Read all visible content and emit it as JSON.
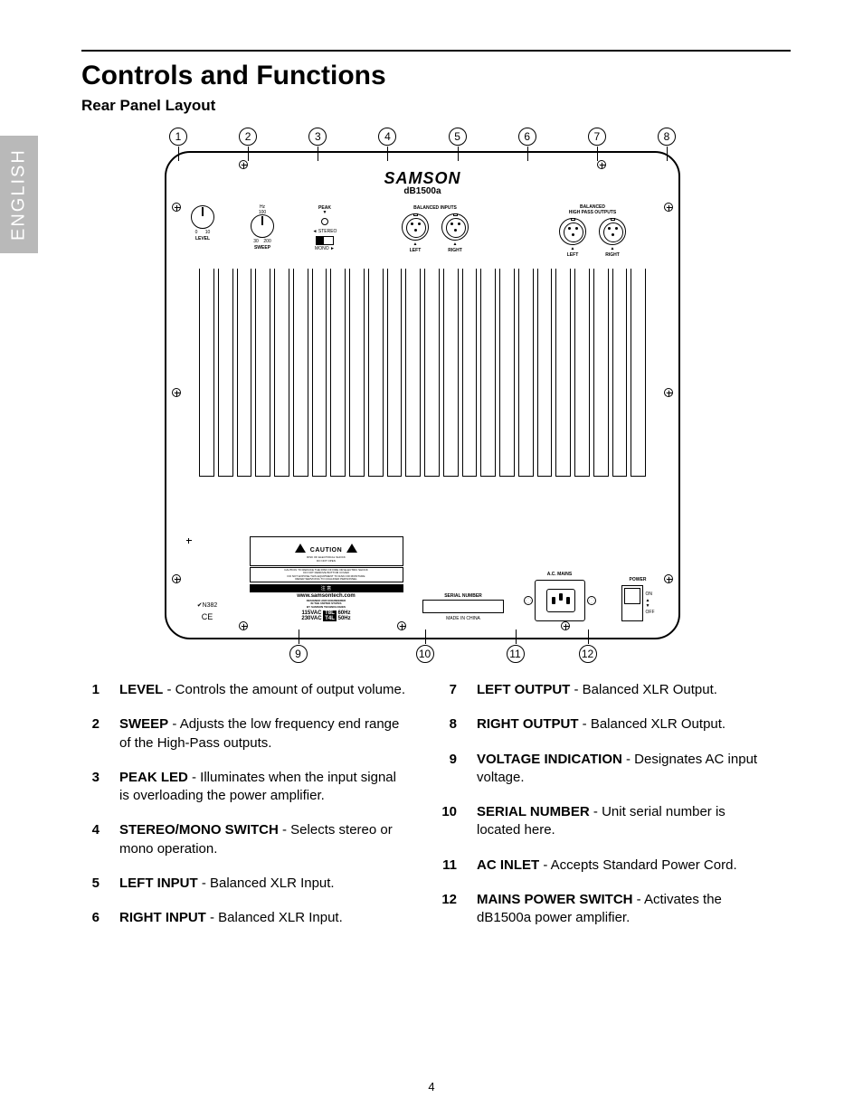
{
  "page": {
    "lang_tab": "ENGLISH",
    "title": "Controls and Functions",
    "subtitle": "Rear Panel Layout",
    "page_number": "4"
  },
  "diagram": {
    "brand": "SAMSON",
    "model": "dB1500a",
    "sections": {
      "balanced_inputs": "BALANCED INPUTS",
      "hp_outputs_l1": "BALANCED",
      "hp_outputs_l2": "HIGH PASS OUTPUTS",
      "left": "LEFT",
      "right": "RIGHT",
      "level_label": "LEVEL",
      "level_min": "0",
      "level_max": "10",
      "sweep_label": "SWEEP",
      "sweep_min": "30",
      "sweep_max": "200",
      "sweep_unit": "Hz",
      "sweep_mid": "100",
      "peak": "PEAK",
      "stereo": "◄ STEREO",
      "mono": "MONO ►",
      "cert": "N382",
      "ce": "CE",
      "caution": "CAUTION",
      "caution_sub": "RISK OF ELECTRICAL SHOCK\nDO NOT OPEN",
      "caution_body": "CAUTION: TO REDUCE THE RISK OF FIRE OR ELECTRIC SHOCK\nDO NOT REMOVE BOTTOM COVER\nDO NOT EXPOSE THIS EQUIPMENT TO RAIN OR MOISTURE\nREFER SERVICING TO QUALIFIED PERSONNEL",
      "attention": "注 意",
      "url": "www.samsontech.com",
      "designed": "DESIGNED AND ENGINEERED\nIN THE UNITED STATES\nBY SAMSON TECHNOLOGIES",
      "v115": "115VAC",
      "v230": "230VAC",
      "f60": "60Hz",
      "f50": "50Hz",
      "fuse1": "T8L",
      "fuse2": "T4L",
      "serial": "SERIAL NUMBER",
      "made": "MADE IN CHINA",
      "ac_mains": "A.C. MAINS",
      "power": "POWER",
      "on": "ON",
      "off": "OFF"
    },
    "callouts_top": [
      "1",
      "2",
      "3",
      "4",
      "5",
      "6",
      "7",
      "8"
    ],
    "callouts_bottom": [
      "9",
      "10",
      "11",
      "12"
    ],
    "fin_count": 24
  },
  "items_left": [
    {
      "n": "1",
      "term": "LEVEL",
      "desc": " - Controls the amount of output volume."
    },
    {
      "n": "2",
      "term": "SWEEP",
      "desc": " - Adjusts the low frequency end range of the High-Pass outputs."
    },
    {
      "n": "3",
      "term": "PEAK LED",
      "desc": " - Illuminates when the input signal is overloading the power amplifier."
    },
    {
      "n": "4",
      "term": "STEREO/MONO SWITCH",
      "desc": " - Selects stereo or mono operation."
    },
    {
      "n": "5",
      "term": "LEFT INPUT",
      "desc": " - Balanced XLR Input."
    },
    {
      "n": "6",
      "term": "RIGHT INPUT",
      "desc": " - Balanced XLR Input."
    }
  ],
  "items_right": [
    {
      "n": "7",
      "term": "LEFT OUTPUT",
      "desc": " -  Balanced XLR Output."
    },
    {
      "n": "8",
      "term": "RIGHT OUTPUT",
      "desc": " - Balanced XLR Output."
    },
    {
      "n": "9",
      "term": "VOLTAGE INDICATION",
      "desc": " - Designates  AC input voltage."
    },
    {
      "n": "10",
      "term": "SERIAL NUMBER ",
      "desc": " - Unit serial number is located here."
    },
    {
      "n": "11",
      "term": "AC INLET",
      "desc": " -  Accepts Standard Power Cord."
    },
    {
      "n": "12",
      "term": "MAINS POWER SWITCH",
      "desc": " - Activates the dB1500a power amplifier."
    }
  ],
  "colors": {
    "tab_bg": "#b9b9b9",
    "text": "#000000",
    "bg": "#ffffff"
  }
}
